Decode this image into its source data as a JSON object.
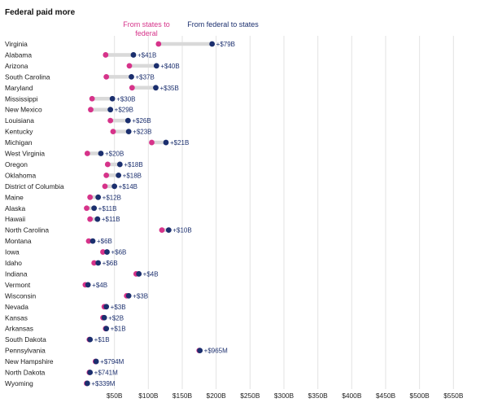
{
  "chart_data": {
    "type": "dumbbell",
    "title": "Federal paid more",
    "series": [
      {
        "name": "From states to federal",
        "color": "#d6338a"
      },
      {
        "name": "From federal to states",
        "color": "#1b2f6e"
      }
    ],
    "xlim": [
      0,
      560
    ],
    "x_ticks": [
      50,
      100,
      150,
      200,
      250,
      300,
      350,
      400,
      450,
      500,
      550
    ],
    "x_tick_labels": [
      "$50B",
      "$100B",
      "$150B",
      "$200B",
      "$250B",
      "$300B",
      "$350B",
      "$400B",
      "$450B",
      "$500B",
      "$550B"
    ],
    "rows": [
      {
        "state": "Virginia",
        "to_federal": 115,
        "from_federal": 194,
        "label": "+$79B"
      },
      {
        "state": "Alabama",
        "to_federal": 37,
        "from_federal": 78,
        "label": "+$41B"
      },
      {
        "state": "Arizona",
        "to_federal": 72,
        "from_federal": 112,
        "label": "+$40B"
      },
      {
        "state": "South Carolina",
        "to_federal": 38,
        "from_federal": 75,
        "label": "+$37B"
      },
      {
        "state": "Maryland",
        "to_federal": 76,
        "from_federal": 111,
        "label": "+$35B"
      },
      {
        "state": "Mississippi",
        "to_federal": 17,
        "from_federal": 47,
        "label": "+$30B"
      },
      {
        "state": "New Mexico",
        "to_federal": 15,
        "from_federal": 44,
        "label": "+$29B"
      },
      {
        "state": "Louisiana",
        "to_federal": 44,
        "from_federal": 70,
        "label": "+$26B"
      },
      {
        "state": "Kentucky",
        "to_federal": 48,
        "from_federal": 71,
        "label": "+$23B"
      },
      {
        "state": "Michigan",
        "to_federal": 105,
        "from_federal": 126,
        "label": "+$21B"
      },
      {
        "state": "West Virginia",
        "to_federal": 10,
        "from_federal": 30,
        "label": "+$20B"
      },
      {
        "state": "Oregon",
        "to_federal": 40,
        "from_federal": 58,
        "label": "+$18B"
      },
      {
        "state": "Oklahoma",
        "to_federal": 38,
        "from_federal": 56,
        "label": "+$18B"
      },
      {
        "state": "District of Columbia",
        "to_federal": 36,
        "from_federal": 50,
        "label": "+$14B"
      },
      {
        "state": "Maine",
        "to_federal": 14,
        "from_federal": 26,
        "label": "+$12B"
      },
      {
        "state": "Alaska",
        "to_federal": 9,
        "from_federal": 20,
        "label": "+$11B"
      },
      {
        "state": "Hawaii",
        "to_federal": 14,
        "from_federal": 25,
        "label": "+$11B"
      },
      {
        "state": "North Carolina",
        "to_federal": 120,
        "from_federal": 130,
        "label": "+$10B"
      },
      {
        "state": "Montana",
        "to_federal": 12,
        "from_federal": 18,
        "label": "+$6B"
      },
      {
        "state": "Iowa",
        "to_federal": 33,
        "from_federal": 39,
        "label": "+$6B"
      },
      {
        "state": "Idaho",
        "to_federal": 20,
        "from_federal": 26,
        "label": "+$6B"
      },
      {
        "state": "Indiana",
        "to_federal": 82,
        "from_federal": 86,
        "label": "+$4B"
      },
      {
        "state": "Vermont",
        "to_federal": 7,
        "from_federal": 11,
        "label": "+$4B"
      },
      {
        "state": "Wisconsin",
        "to_federal": 68,
        "from_federal": 71,
        "label": "+$3B"
      },
      {
        "state": "Nevada",
        "to_federal": 35,
        "from_federal": 38,
        "label": "+$3B"
      },
      {
        "state": "Kansas",
        "to_federal": 33,
        "from_federal": 35,
        "label": "+$2B"
      },
      {
        "state": "Arkansas",
        "to_federal": 37,
        "from_federal": 38,
        "label": "+$1B"
      },
      {
        "state": "South Dakota",
        "to_federal": 13,
        "from_federal": 14,
        "label": "+$1B"
      },
      {
        "state": "Pennsylvania",
        "to_federal": 175,
        "from_federal": 176,
        "label": "+$965M"
      },
      {
        "state": "New Hampshire",
        "to_federal": 22,
        "from_federal": 23,
        "label": "+$794M"
      },
      {
        "state": "North Dakota",
        "to_federal": 13,
        "from_federal": 14,
        "label": "+$741M"
      },
      {
        "state": "Wyoming",
        "to_federal": 9,
        "from_federal": 10,
        "label": "+$339M"
      }
    ]
  }
}
